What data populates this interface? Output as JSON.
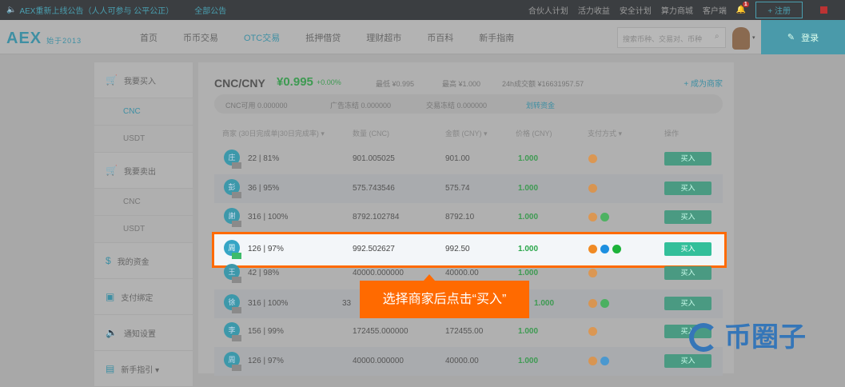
{
  "topbar": {
    "notice": "AEX重新上线公告（人人可参与 公平公正）",
    "all_notices": "全部公告",
    "links": [
      "合伙人计划",
      "活力收益",
      "安全计划",
      "算力商城",
      "客户端"
    ],
    "bell_count": "1",
    "register": "+ 注册"
  },
  "nav": {
    "logo": "AEX",
    "logo_sub": "始于2013",
    "items": [
      "首页",
      "币币交易",
      "OTC交易",
      "抵押借贷",
      "理财超市",
      "币百科",
      "新手指南"
    ],
    "active": "OTC交易",
    "search_placeholder": "搜索币种、交易对、币种",
    "login": "登录"
  },
  "sidebar": {
    "buy": "我要买入",
    "buy_items": [
      "CNC",
      "USDT"
    ],
    "sell": "我要卖出",
    "sell_items": [
      "CNC",
      "USDT"
    ],
    "funds": "我的资金",
    "payment": "支付绑定",
    "notify": "通知设置",
    "guide": "新手指引 ▾"
  },
  "market": {
    "pair": "CNC/CNY",
    "price": "¥0.995",
    "change": "+0.00%",
    "low": "最低 ¥0.995",
    "high": "最高 ¥1.000",
    "volume": "24h成交额 ¥16631957.57",
    "become_merchant": "+ 成为商家"
  },
  "balance": {
    "available": "CNC可用  0.000000",
    "ad_frozen": "广告冻结  0.000000",
    "trade_frozen": "交易冻结  0.000000",
    "transfer": "划转资金"
  },
  "columns": [
    "商家 (30日完成单|30日完成率) ▾",
    "数量 (CNC)",
    "金额 (CNY) ▾",
    "价格 (CNY)",
    "支付方式 ▾",
    "操作"
  ],
  "rows": [
    {
      "avatar": "庄",
      "stats": "22 | 81%",
      "qty": "901.005025",
      "amount": "901.00",
      "price": "1.000",
      "pay": [
        "bank"
      ]
    },
    {
      "avatar": "彭",
      "stats": "36 | 95%",
      "qty": "575.743546",
      "amount": "575.74",
      "price": "1.000",
      "pay": [
        "bank"
      ]
    },
    {
      "avatar": "謝",
      "stats": "316 | 100%",
      "qty": "8792.102784",
      "amount": "8792.10",
      "price": "1.000",
      "pay": [
        "bank",
        "wechat"
      ]
    },
    {
      "avatar": "周",
      "stats": "126 | 97%",
      "qty": "992.502627",
      "amount": "992.50",
      "price": "1.000",
      "pay": [
        "bank",
        "alipay",
        "wechat"
      ]
    },
    {
      "avatar": "王",
      "stats": "42 | 98%",
      "qty": "40000.000000",
      "amount": "40000.00",
      "price": "1.000",
      "pay": [
        "bank"
      ]
    },
    {
      "avatar": "徐",
      "stats": "316 | 100%",
      "qty": "33",
      "amount": "",
      "price": "1.000",
      "pay": [
        "bank",
        "wechat"
      ]
    },
    {
      "avatar": "李",
      "stats": "156 | 99%",
      "qty": "172455.000000",
      "amount": "172455.00",
      "price": "1.000",
      "pay": [
        "bank"
      ]
    },
    {
      "avatar": "周",
      "stats": "126 | 97%",
      "qty": "40000.000000",
      "amount": "40000.00",
      "price": "1.000",
      "pay": [
        "bank",
        "alipay"
      ]
    }
  ],
  "buy_label": "买入",
  "tooltip": "选择商家后点击“买入”",
  "watermark": "币圈子",
  "colors": {
    "highlight": "#ff6a00",
    "accent": "#35a5c5",
    "buy": "#33bf9a",
    "price": "#2aa64a",
    "bank": "#f08a24",
    "alipay": "#1c8fe0",
    "wechat": "#1db33a"
  }
}
